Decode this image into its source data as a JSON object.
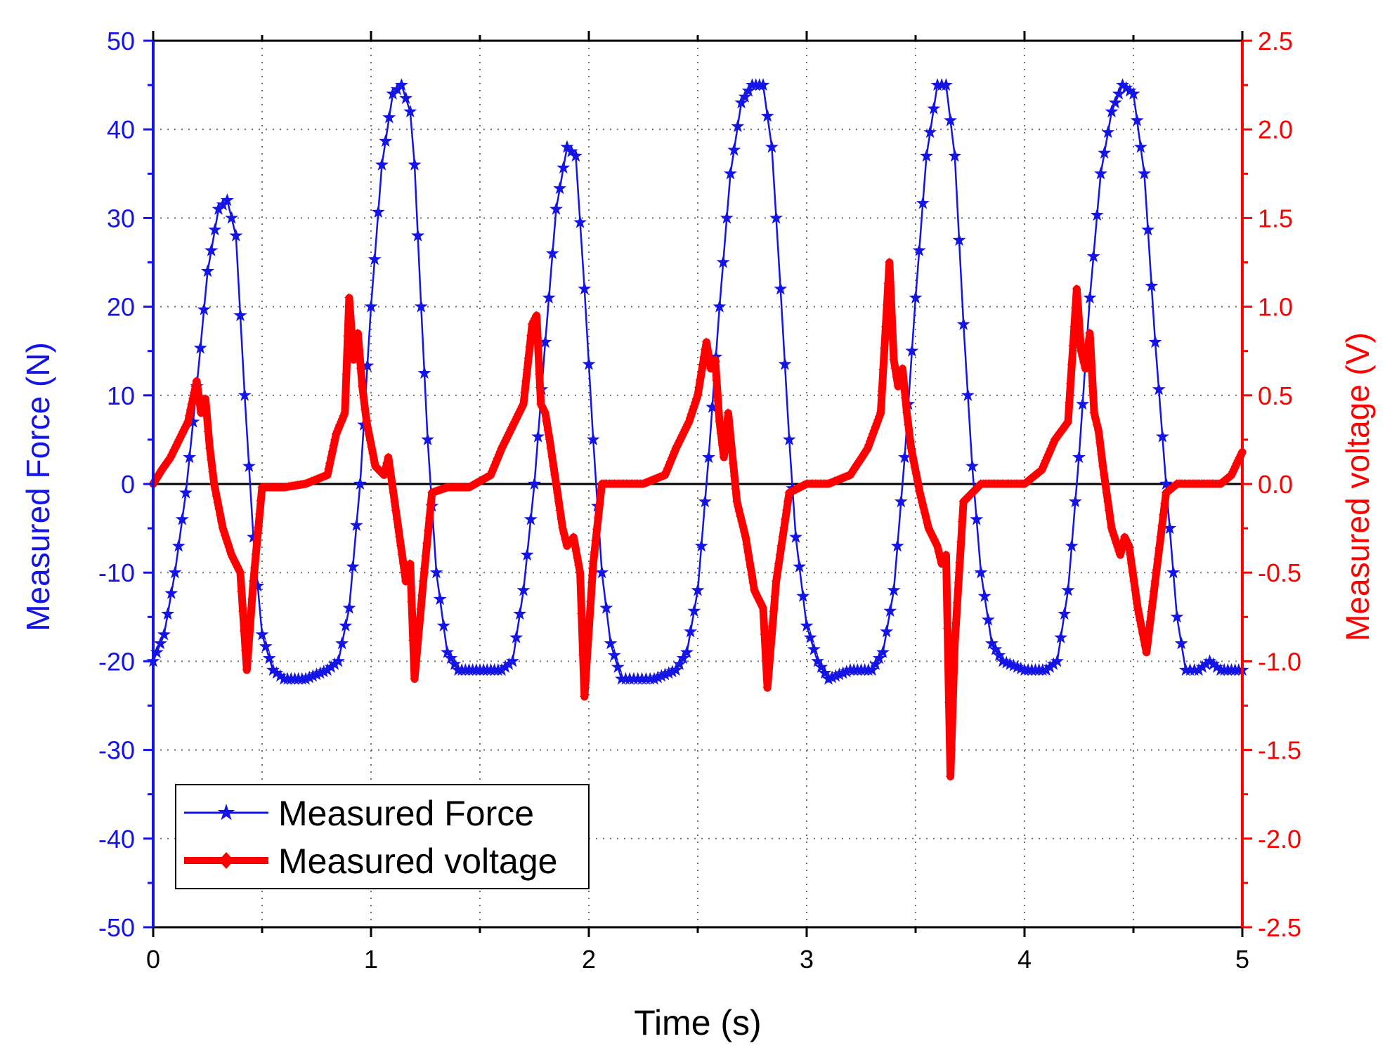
{
  "chart_data": {
    "type": "line",
    "title": "",
    "xlabel": "Time (s)",
    "ylabel_left": "Measured Force (N)",
    "ylabel_right": "Measured voltage (V)",
    "xlim": [
      0,
      5
    ],
    "ylim_left": [
      -50,
      50
    ],
    "ylim_right": [
      -2.5,
      2.5
    ],
    "x_ticks": [
      "0",
      "1",
      "2",
      "3",
      "4",
      "5"
    ],
    "y_ticks_left": [
      "-50",
      "-40",
      "-30",
      "-20",
      "-10",
      "0",
      "10",
      "20",
      "30",
      "40",
      "50"
    ],
    "y_ticks_right": [
      "-2.5",
      "-2.0",
      "-1.5",
      "-1.0",
      "-0.5",
      "0.0",
      "0.5",
      "1.0",
      "1.5",
      "2.0",
      "2.5"
    ],
    "grid": true,
    "zero_line": true,
    "legend_position": "bottom-left",
    "colors": {
      "force": "#1414e6",
      "voltage": "#ff0000",
      "grid": "#707070",
      "axis": "#000000"
    },
    "series": [
      {
        "name": "Measured Force",
        "axis": "left",
        "color": "#1414e6",
        "marker": "star",
        "points": [
          [
            0.0,
            -20
          ],
          [
            0.05,
            -17
          ],
          [
            0.1,
            -10
          ],
          [
            0.15,
            -1
          ],
          [
            0.2,
            11
          ],
          [
            0.25,
            24
          ],
          [
            0.3,
            31
          ],
          [
            0.34,
            32
          ],
          [
            0.38,
            28
          ],
          [
            0.42,
            10
          ],
          [
            0.46,
            -6
          ],
          [
            0.5,
            -17
          ],
          [
            0.55,
            -21
          ],
          [
            0.6,
            -22
          ],
          [
            0.7,
            -22
          ],
          [
            0.8,
            -21
          ],
          [
            0.85,
            -20
          ],
          [
            0.9,
            -14
          ],
          [
            0.95,
            0
          ],
          [
            1.0,
            20
          ],
          [
            1.05,
            36
          ],
          [
            1.1,
            44
          ],
          [
            1.14,
            45
          ],
          [
            1.18,
            42
          ],
          [
            1.2,
            36
          ],
          [
            1.23,
            20
          ],
          [
            1.26,
            5
          ],
          [
            1.3,
            -10
          ],
          [
            1.35,
            -19
          ],
          [
            1.4,
            -21
          ],
          [
            1.5,
            -21
          ],
          [
            1.6,
            -21
          ],
          [
            1.65,
            -20
          ],
          [
            1.7,
            -12
          ],
          [
            1.75,
            0
          ],
          [
            1.8,
            16
          ],
          [
            1.85,
            31
          ],
          [
            1.9,
            38
          ],
          [
            1.94,
            37
          ],
          [
            1.98,
            22
          ],
          [
            2.02,
            5
          ],
          [
            2.06,
            -10
          ],
          [
            2.1,
            -18
          ],
          [
            2.15,
            -22
          ],
          [
            2.3,
            -22
          ],
          [
            2.4,
            -21
          ],
          [
            2.45,
            -19
          ],
          [
            2.5,
            -12
          ],
          [
            2.55,
            3
          ],
          [
            2.6,
            20
          ],
          [
            2.65,
            35
          ],
          [
            2.7,
            43
          ],
          [
            2.75,
            45
          ],
          [
            2.8,
            45
          ],
          [
            2.84,
            38
          ],
          [
            2.88,
            22
          ],
          [
            2.92,
            5
          ],
          [
            2.95,
            -6
          ],
          [
            3.0,
            -16
          ],
          [
            3.05,
            -20
          ],
          [
            3.1,
            -22
          ],
          [
            3.2,
            -21
          ],
          [
            3.3,
            -21
          ],
          [
            3.35,
            -19
          ],
          [
            3.4,
            -12
          ],
          [
            3.45,
            3
          ],
          [
            3.5,
            21
          ],
          [
            3.55,
            37
          ],
          [
            3.6,
            45
          ],
          [
            3.64,
            45
          ],
          [
            3.68,
            37
          ],
          [
            3.72,
            18
          ],
          [
            3.76,
            2
          ],
          [
            3.8,
            -10
          ],
          [
            3.85,
            -18
          ],
          [
            3.9,
            -20
          ],
          [
            4.0,
            -21
          ],
          [
            4.1,
            -21
          ],
          [
            4.15,
            -20
          ],
          [
            4.2,
            -12
          ],
          [
            4.25,
            3
          ],
          [
            4.3,
            21
          ],
          [
            4.35,
            35
          ],
          [
            4.4,
            42
          ],
          [
            4.45,
            45
          ],
          [
            4.5,
            44
          ],
          [
            4.55,
            35
          ],
          [
            4.6,
            16
          ],
          [
            4.65,
            0
          ],
          [
            4.7,
            -15
          ],
          [
            4.74,
            -21
          ],
          [
            4.8,
            -21
          ],
          [
            4.85,
            -20
          ],
          [
            4.9,
            -21
          ],
          [
            5.0,
            -21
          ]
        ]
      },
      {
        "name": "Measured voltage",
        "axis": "right",
        "color": "#ff0000",
        "marker": "diamond",
        "points": [
          [
            0.0,
            0.0
          ],
          [
            0.04,
            0.08
          ],
          [
            0.08,
            0.15
          ],
          [
            0.12,
            0.25
          ],
          [
            0.16,
            0.35
          ],
          [
            0.2,
            0.58
          ],
          [
            0.22,
            0.4
          ],
          [
            0.24,
            0.48
          ],
          [
            0.26,
            0.2
          ],
          [
            0.28,
            0.0
          ],
          [
            0.32,
            -0.25
          ],
          [
            0.36,
            -0.4
          ],
          [
            0.4,
            -0.5
          ],
          [
            0.43,
            -1.05
          ],
          [
            0.46,
            -0.55
          ],
          [
            0.5,
            -0.02
          ],
          [
            0.6,
            -0.02
          ],
          [
            0.7,
            0.0
          ],
          [
            0.8,
            0.05
          ],
          [
            0.84,
            0.28
          ],
          [
            0.88,
            0.4
          ],
          [
            0.9,
            1.05
          ],
          [
            0.92,
            0.7
          ],
          [
            0.94,
            0.85
          ],
          [
            0.96,
            0.55
          ],
          [
            0.98,
            0.35
          ],
          [
            1.02,
            0.1
          ],
          [
            1.06,
            0.05
          ],
          [
            1.08,
            0.15
          ],
          [
            1.12,
            -0.2
          ],
          [
            1.16,
            -0.55
          ],
          [
            1.18,
            -0.45
          ],
          [
            1.2,
            -1.1
          ],
          [
            1.24,
            -0.55
          ],
          [
            1.28,
            -0.05
          ],
          [
            1.35,
            -0.02
          ],
          [
            1.45,
            -0.02
          ],
          [
            1.55,
            0.05
          ],
          [
            1.6,
            0.2
          ],
          [
            1.66,
            0.35
          ],
          [
            1.7,
            0.45
          ],
          [
            1.74,
            0.9
          ],
          [
            1.76,
            0.95
          ],
          [
            1.78,
            0.45
          ],
          [
            1.8,
            0.4
          ],
          [
            1.82,
            0.25
          ],
          [
            1.85,
            0.0
          ],
          [
            1.88,
            -0.25
          ],
          [
            1.9,
            -0.35
          ],
          [
            1.93,
            -0.3
          ],
          [
            1.96,
            -0.5
          ],
          [
            1.98,
            -1.2
          ],
          [
            2.02,
            -0.45
          ],
          [
            2.06,
            0.0
          ],
          [
            2.15,
            0.0
          ],
          [
            2.25,
            0.0
          ],
          [
            2.35,
            0.05
          ],
          [
            2.4,
            0.2
          ],
          [
            2.46,
            0.35
          ],
          [
            2.5,
            0.5
          ],
          [
            2.54,
            0.8
          ],
          [
            2.56,
            0.65
          ],
          [
            2.58,
            0.7
          ],
          [
            2.6,
            0.35
          ],
          [
            2.62,
            0.15
          ],
          [
            2.64,
            0.4
          ],
          [
            2.68,
            -0.1
          ],
          [
            2.72,
            -0.3
          ],
          [
            2.76,
            -0.6
          ],
          [
            2.8,
            -0.7
          ],
          [
            2.82,
            -1.15
          ],
          [
            2.86,
            -0.55
          ],
          [
            2.92,
            -0.05
          ],
          [
            3.0,
            0.0
          ],
          [
            3.1,
            0.0
          ],
          [
            3.2,
            0.05
          ],
          [
            3.28,
            0.2
          ],
          [
            3.34,
            0.4
          ],
          [
            3.38,
            1.25
          ],
          [
            3.4,
            0.7
          ],
          [
            3.42,
            0.55
          ],
          [
            3.44,
            0.65
          ],
          [
            3.46,
            0.4
          ],
          [
            3.48,
            0.2
          ],
          [
            3.52,
            -0.05
          ],
          [
            3.56,
            -0.25
          ],
          [
            3.6,
            -0.35
          ],
          [
            3.62,
            -0.45
          ],
          [
            3.64,
            -0.4
          ],
          [
            3.66,
            -1.65
          ],
          [
            3.68,
            -0.9
          ],
          [
            3.72,
            -0.1
          ],
          [
            3.8,
            0.0
          ],
          [
            3.9,
            0.0
          ],
          [
            4.0,
            0.0
          ],
          [
            4.08,
            0.08
          ],
          [
            4.14,
            0.25
          ],
          [
            4.2,
            0.35
          ],
          [
            4.24,
            1.1
          ],
          [
            4.26,
            0.75
          ],
          [
            4.28,
            0.65
          ],
          [
            4.3,
            0.85
          ],
          [
            4.32,
            0.4
          ],
          [
            4.34,
            0.3
          ],
          [
            4.36,
            0.1
          ],
          [
            4.4,
            -0.25
          ],
          [
            4.44,
            -0.4
          ],
          [
            4.46,
            -0.3
          ],
          [
            4.48,
            -0.35
          ],
          [
            4.52,
            -0.7
          ],
          [
            4.56,
            -0.95
          ],
          [
            4.6,
            -0.55
          ],
          [
            4.65,
            -0.05
          ],
          [
            4.7,
            0.0
          ],
          [
            4.8,
            0.0
          ],
          [
            4.9,
            0.0
          ],
          [
            4.95,
            0.05
          ],
          [
            5.0,
            0.18
          ]
        ]
      }
    ]
  }
}
